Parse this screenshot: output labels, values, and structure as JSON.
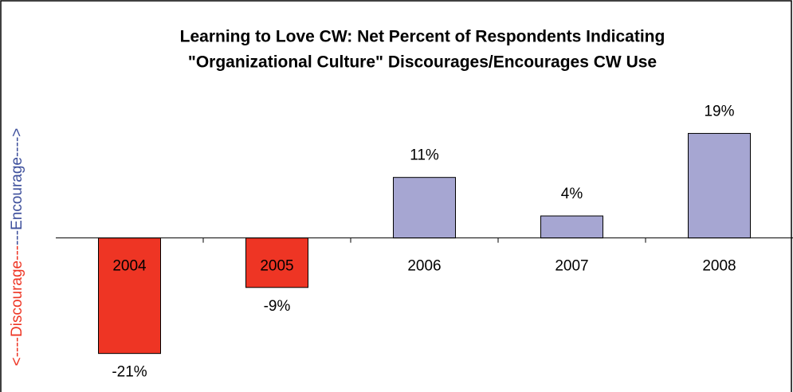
{
  "chart_data": {
    "type": "bar",
    "title": "Learning to Love CW: Net Percent of Respondents Indicating",
    "subtitle": "\"Organizational Culture\" Discourages/Encourages CW Use",
    "y_label_negative": "<----Discourage---",
    "y_label_positive": "---Encourage---->",
    "y_label_negative_color": "#ee3524",
    "y_label_positive_color": "#3d4f9c",
    "categories": [
      "2004",
      "2005",
      "2006",
      "2007",
      "2008"
    ],
    "values": [
      -21,
      -9,
      11,
      4,
      19
    ],
    "value_labels": [
      "-21%",
      "-9%",
      "11%",
      "4%",
      "19%"
    ],
    "colors": [
      "#ee3524",
      "#ee3524",
      "#a6a6d2",
      "#a6a6d2",
      "#a6a6d2"
    ],
    "ylim": [
      -28,
      25
    ]
  }
}
